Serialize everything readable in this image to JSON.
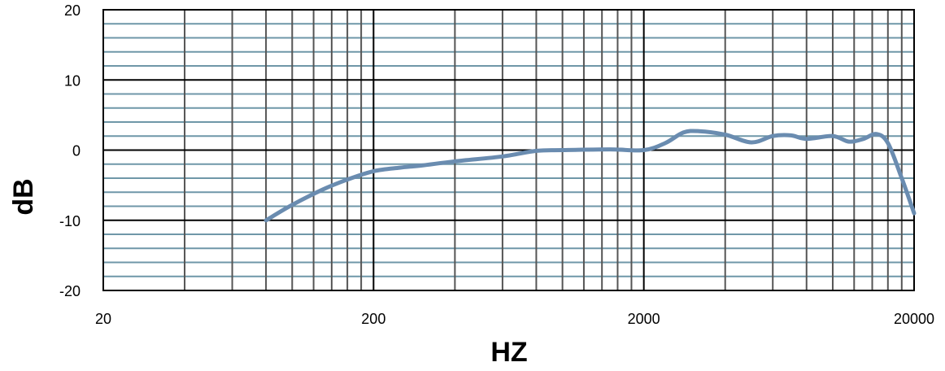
{
  "chart_data": {
    "type": "line",
    "xlabel": "HZ",
    "ylabel": "dB",
    "xscale": "log",
    "xlim": [
      20,
      20000
    ],
    "ylim": [
      -20,
      20
    ],
    "x_ticks": [
      "20",
      "200",
      "2000",
      "20000"
    ],
    "y_ticks": [
      "20",
      "10",
      "0",
      "-10",
      "-20"
    ],
    "grid": true,
    "series_color": "#6a8cb0",
    "series": [
      {
        "points": [
          {
            "x": 80,
            "y": -10
          },
          {
            "x": 100,
            "y": -7.8
          },
          {
            "x": 130,
            "y": -5.6
          },
          {
            "x": 160,
            "y": -4.2
          },
          {
            "x": 200,
            "y": -3.0
          },
          {
            "x": 250,
            "y": -2.5
          },
          {
            "x": 300,
            "y": -2.2
          },
          {
            "x": 400,
            "y": -1.6
          },
          {
            "x": 600,
            "y": -0.9
          },
          {
            "x": 800,
            "y": -0.1
          },
          {
            "x": 1000,
            "y": 0.0
          },
          {
            "x": 1500,
            "y": 0.1
          },
          {
            "x": 2000,
            "y": 0.0
          },
          {
            "x": 2400,
            "y": 1.0
          },
          {
            "x": 2800,
            "y": 2.5
          },
          {
            "x": 3200,
            "y": 2.7
          },
          {
            "x": 4000,
            "y": 2.2
          },
          {
            "x": 5000,
            "y": 1.1
          },
          {
            "x": 6000,
            "y": 2.0
          },
          {
            "x": 7000,
            "y": 2.1
          },
          {
            "x": 8000,
            "y": 1.6
          },
          {
            "x": 10000,
            "y": 2.0
          },
          {
            "x": 11500,
            "y": 1.2
          },
          {
            "x": 13000,
            "y": 1.6
          },
          {
            "x": 14500,
            "y": 2.3
          },
          {
            "x": 16000,
            "y": 1.0
          },
          {
            "x": 18000,
            "y": -4.0
          },
          {
            "x": 20000,
            "y": -9.0
          }
        ]
      }
    ]
  }
}
